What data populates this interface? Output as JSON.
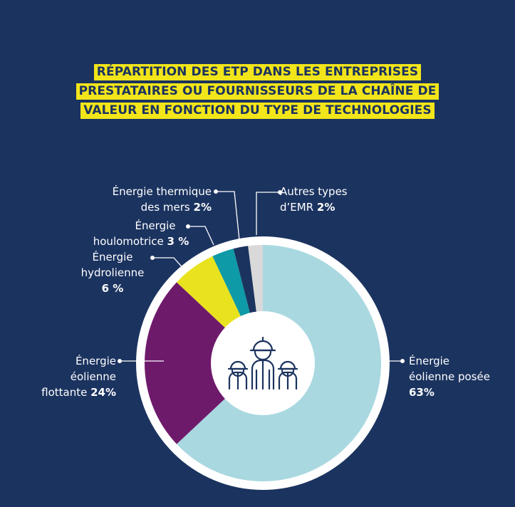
{
  "title_lines": [
    "RÉPARTITION DES ETP DANS LES ENTREPRISES",
    "PRESTATAIRES OU FOURNISSEURS DE LA CHAÎNE DE",
    "VALEUR EN FONCTION DU TYPE DE TECHNOLOGIES"
  ],
  "colors": {
    "background": "#1b335f",
    "title_highlight": "#f2e51a",
    "ring": "#ffffff"
  },
  "labels": {
    "autres": {
      "line1": "Autres types",
      "line2": "d’EMR ",
      "pct": "2%"
    },
    "thermique": {
      "line1": "Énergie thermique",
      "line2": "des mers ",
      "pct": "2%"
    },
    "houlo": {
      "line1": "Énergie",
      "line2": "houlomotrice ",
      "pct": "3 %"
    },
    "hydro": {
      "line1": "Énergie",
      "line2": "hydrolienne",
      "pct": "6 %"
    },
    "flottante": {
      "line1": "Énergie",
      "line2": "éolienne",
      "line3": "flottante ",
      "pct": "24%"
    },
    "posee": {
      "line1": "Énergie",
      "line2": "éolienne posée",
      "pct": "63%"
    }
  },
  "center_icon": "three-workers-with-hard-hats-icon",
  "chart_data": {
    "type": "pie",
    "donut": true,
    "slices": [
      {
        "label": "Énergie éolienne posée",
        "value": 63,
        "color": "#a9d8e0"
      },
      {
        "label": "Énergie éolienne flottante",
        "value": 24,
        "color": "#6e1a6b"
      },
      {
        "label": "Énergie hydrolienne",
        "value": 6,
        "color": "#e9e21f"
      },
      {
        "label": "Énergie houlomotrice",
        "value": 3,
        "color": "#0e9aa7"
      },
      {
        "label": "Énergie thermique des mers",
        "value": 2,
        "color": "#1b335f"
      },
      {
        "label": "Autres types d’EMR",
        "value": 2,
        "color": "#d9d9d9"
      }
    ]
  }
}
